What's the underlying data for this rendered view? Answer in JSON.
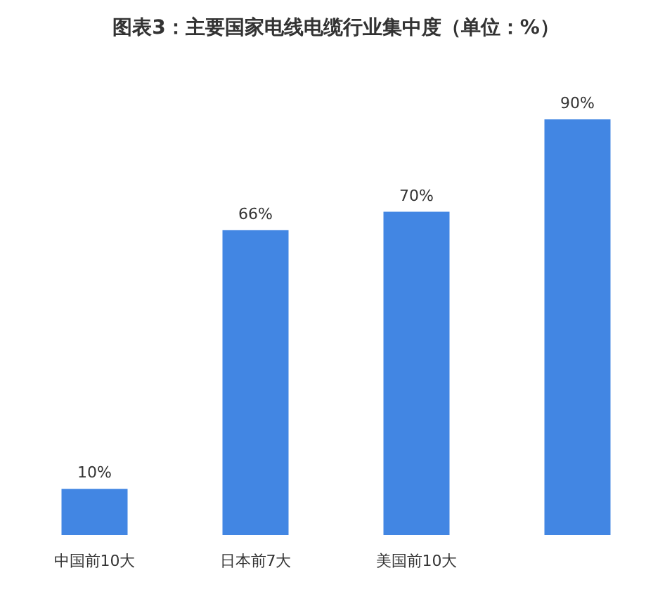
{
  "chart_data": {
    "type": "bar",
    "title": "图表3：主要国家电线电缆行业集中度（单位：%）",
    "categories": [
      "中国前10大",
      "日本前7大",
      "美国前10大",
      null
    ],
    "values": [
      10,
      66,
      70,
      90
    ],
    "color": "#4286e3",
    "value_labels": [
      "10%",
      "66%",
      "70%",
      "90%"
    ]
  }
}
